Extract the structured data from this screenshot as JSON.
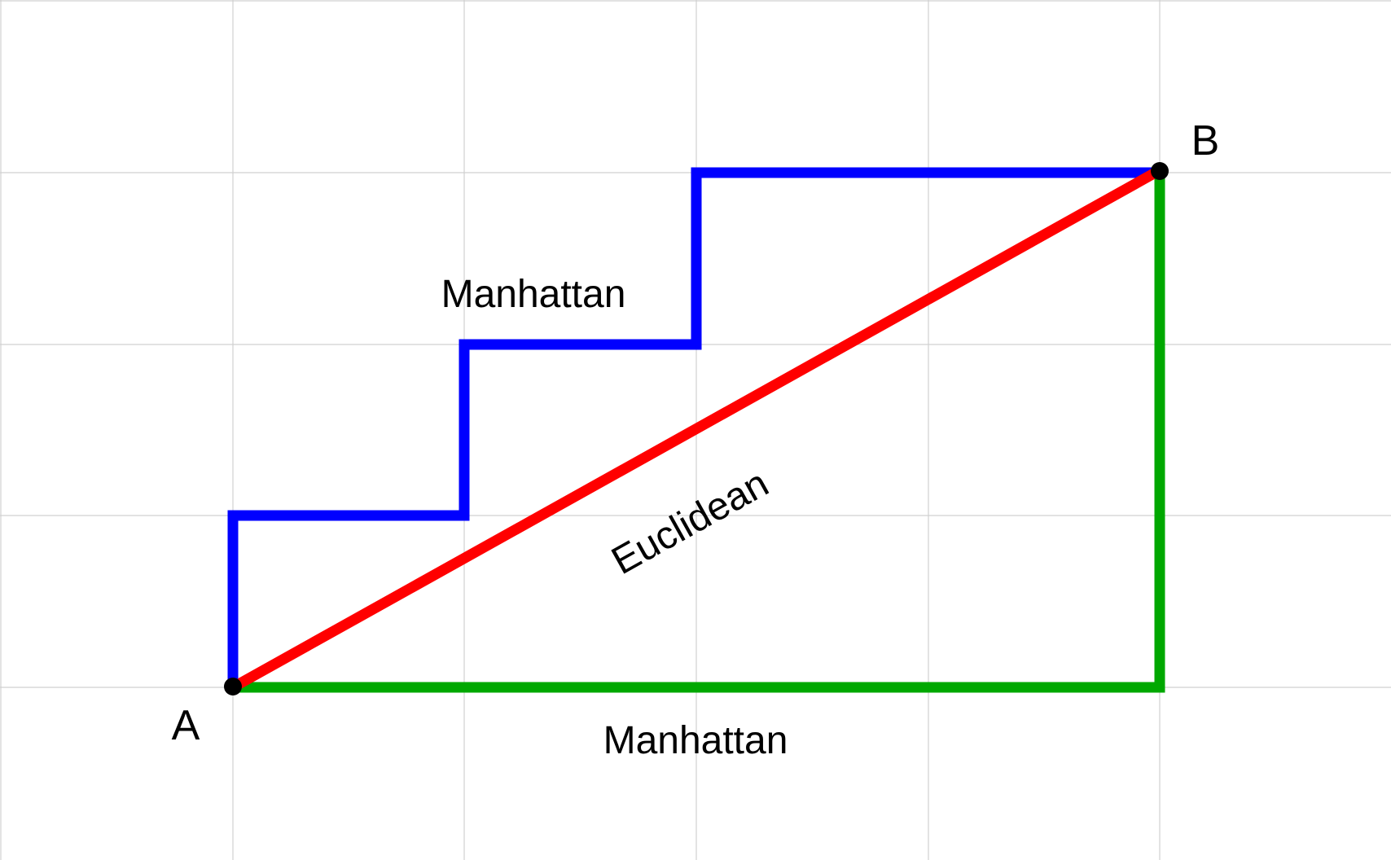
{
  "labels": {
    "manhattan_top": "Manhattan",
    "manhattan_bottom": "Manhattan",
    "euclidean": "Euclidean",
    "point_a": "A",
    "point_b": "B"
  },
  "colors": {
    "staircase_path": "#0000ff",
    "euclidean_path": "#ff0000",
    "l_path": "#00a800",
    "grid": "#d0d0d0",
    "points": "#000000"
  }
}
